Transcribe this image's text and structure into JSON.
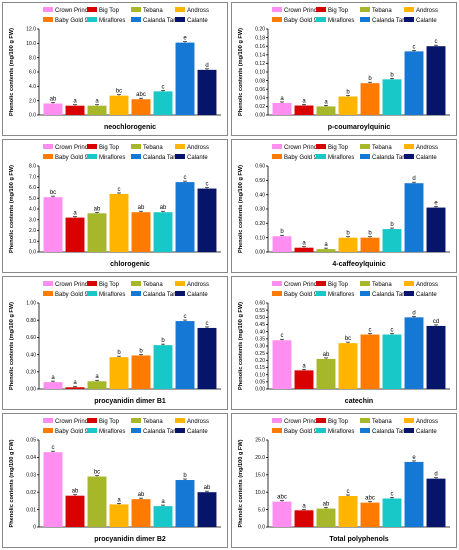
{
  "legend": [
    "Crown Princess",
    "Big Top",
    "Tebana",
    "Andross",
    "Baby Gold 9",
    "Miraflores",
    "Calanda Tardio",
    "Calante"
  ],
  "colors": [
    "#ff8ef0",
    "#d90000",
    "#a6b82a",
    "#ffb400",
    "#ff7a00",
    "#18c8c8",
    "#1478d4",
    "#06146a"
  ],
  "ylabel": "Phenolic contents (mg/100 g FW)",
  "chart_data": [
    {
      "type": "bar",
      "title": "neochlorogenic",
      "ylabel": "Phenolic contents (mg/100 g FW)",
      "ylim": [
        0,
        12
      ],
      "yticks": [
        "0.0",
        "2.0",
        "4.0",
        "6.0",
        "8.0",
        "10.0",
        "12.0"
      ],
      "series": [
        {
          "name": "Crown Princess",
          "value": 1.6
        },
        {
          "name": "Big Top",
          "value": 1.3
        },
        {
          "name": "Tebana",
          "value": 1.3
        },
        {
          "name": "Andross",
          "value": 2.7
        },
        {
          "name": "Baby Gold 9",
          "value": 2.2
        },
        {
          "name": "Miraflores",
          "value": 3.3
        },
        {
          "name": "Calanda Tardio",
          "value": 10.1
        },
        {
          "name": "Calante",
          "value": 6.3
        }
      ],
      "labels": [
        "ab",
        "a",
        "a",
        "bc",
        "abc",
        "c",
        "e",
        "d"
      ]
    },
    {
      "type": "bar",
      "title": "p-coumaroylquinic",
      "ylabel": "Phenolic contents (mg/100 g FW)",
      "ylim": [
        0,
        0.2
      ],
      "yticks": [
        "0.00",
        "0.02",
        "0.04",
        "0.06",
        "0.08",
        "0.10",
        "0.12",
        "0.14",
        "0.16",
        "0.18",
        "0.20"
      ],
      "series": [
        {
          "name": "Crown Princess",
          "value": 0.028
        },
        {
          "name": "Big Top",
          "value": 0.022
        },
        {
          "name": "Tebana",
          "value": 0.02
        },
        {
          "name": "Andross",
          "value": 0.043
        },
        {
          "name": "Baby Gold 9",
          "value": 0.074
        },
        {
          "name": "Miraflores",
          "value": 0.083
        },
        {
          "name": "Calanda Tardio",
          "value": 0.148
        },
        {
          "name": "Calante",
          "value": 0.16
        }
      ],
      "labels": [
        "a",
        "a",
        "a",
        "b",
        "b",
        "b",
        "c",
        "c"
      ]
    },
    {
      "type": "bar",
      "title": "chlorogenic",
      "ylabel": "Phenolic contents (mg/100 g FW)",
      "ylim": [
        0,
        8
      ],
      "yticks": [
        "0.0",
        "1.0",
        "2.0",
        "3.0",
        "4.0",
        "5.0",
        "6.0",
        "7.0",
        "8.0"
      ],
      "series": [
        {
          "name": "Crown Princess",
          "value": 5.1
        },
        {
          "name": "Big Top",
          "value": 3.2
        },
        {
          "name": "Tebana",
          "value": 3.6
        },
        {
          "name": "Andross",
          "value": 5.4
        },
        {
          "name": "Baby Gold 9",
          "value": 3.7
        },
        {
          "name": "Miraflores",
          "value": 3.7
        },
        {
          "name": "Calanda Tardio",
          "value": 6.5
        },
        {
          "name": "Calante",
          "value": 5.9
        }
      ],
      "labels": [
        "bc",
        "a",
        "ab",
        "c",
        "ab",
        "ab",
        "c",
        "c"
      ]
    },
    {
      "type": "bar",
      "title": "4-caffeoylquinic",
      "ylabel": "Phenolic contents (mg/100 g FW)",
      "ylim": [
        0,
        0.6
      ],
      "yticks": [
        "0.00",
        "0.10",
        "0.20",
        "0.30",
        "0.40",
        "0.50",
        "0.60"
      ],
      "series": [
        {
          "name": "Crown Princess",
          "value": 0.11
        },
        {
          "name": "Big Top",
          "value": 0.03
        },
        {
          "name": "Tebana",
          "value": 0.02
        },
        {
          "name": "Andross",
          "value": 0.1
        },
        {
          "name": "Baby Gold 9",
          "value": 0.1
        },
        {
          "name": "Miraflores",
          "value": 0.16
        },
        {
          "name": "Calanda Tardio",
          "value": 0.48
        },
        {
          "name": "Calante",
          "value": 0.31
        }
      ],
      "labels": [
        "b",
        "a",
        "a",
        "b",
        "b",
        "b",
        "d",
        "e"
      ]
    },
    {
      "type": "bar",
      "title": "procyanidin dimer B1",
      "ylabel": "Phenolic contents (mg/100 g FW)",
      "ylim": [
        0,
        1
      ],
      "yticks": [
        "0.00",
        "0.20",
        "0.40",
        "0.60",
        "0.80",
        "1.00"
      ],
      "series": [
        {
          "name": "Crown Princess",
          "value": 0.08
        },
        {
          "name": "Big Top",
          "value": 0.02
        },
        {
          "name": "Tebana",
          "value": 0.09
        },
        {
          "name": "Andross",
          "value": 0.37
        },
        {
          "name": "Baby Gold 9",
          "value": 0.39
        },
        {
          "name": "Miraflores",
          "value": 0.51
        },
        {
          "name": "Calanda Tardio",
          "value": 0.79
        },
        {
          "name": "Calante",
          "value": 0.71
        }
      ],
      "labels": [
        "a",
        "a",
        "a",
        "b",
        "b",
        "b",
        "c",
        "c"
      ]
    },
    {
      "type": "bar",
      "title": "catechin",
      "ylabel": "Phenolic contents (mg/100 g FW)",
      "ylim": [
        0,
        0.6
      ],
      "yticks": [
        "0.00",
        "0.05",
        "0.10",
        "0.15",
        "0.20",
        "0.25",
        "0.30",
        "0.35",
        "0.40",
        "0.45",
        "0.50",
        "0.55",
        "0.60"
      ],
      "series": [
        {
          "name": "Crown Princess",
          "value": 0.34
        },
        {
          "name": "Big Top",
          "value": 0.13
        },
        {
          "name": "Tebana",
          "value": 0.21
        },
        {
          "name": "Andross",
          "value": 0.32
        },
        {
          "name": "Baby Gold 9",
          "value": 0.38
        },
        {
          "name": "Miraflores",
          "value": 0.38
        },
        {
          "name": "Calanda Tardio",
          "value": 0.5
        },
        {
          "name": "Calante",
          "value": 0.44
        }
      ],
      "labels": [
        "c",
        "a",
        "ab",
        "bc",
        "c",
        "c",
        "d",
        "cd"
      ]
    },
    {
      "type": "bar",
      "title": "procyanidin dimer B2",
      "ylabel": "Phenolic contents (mg/100 g FW)",
      "ylim": [
        0,
        0.05
      ],
      "yticks": [
        "0",
        "0.01",
        "0.02",
        "0.03",
        "0.04",
        "0.05"
      ],
      "series": [
        {
          "name": "Crown Princess",
          "value": 0.043
        },
        {
          "name": "Big Top",
          "value": 0.018
        },
        {
          "name": "Tebana",
          "value": 0.029
        },
        {
          "name": "Andross",
          "value": 0.013
        },
        {
          "name": "Baby Gold 9",
          "value": 0.016
        },
        {
          "name": "Miraflores",
          "value": 0.012
        },
        {
          "name": "Calanda Tardio",
          "value": 0.027
        },
        {
          "name": "Calante",
          "value": 0.02
        }
      ],
      "labels": [
        "c",
        "ab",
        "bc",
        "a",
        "ab",
        "a",
        "b",
        "ab"
      ]
    },
    {
      "type": "bar",
      "title": "Total polyphenols",
      "ylabel": "Phenolic contents (mg/100 g FW)",
      "ylim": [
        0,
        25
      ],
      "yticks": [
        "0.0",
        "5.0",
        "10.0",
        "15.0",
        "20.0",
        "25.0"
      ],
      "series": [
        {
          "name": "Crown Princess",
          "value": 7.3
        },
        {
          "name": "Big Top",
          "value": 4.8
        },
        {
          "name": "Tebana",
          "value": 5.3
        },
        {
          "name": "Andross",
          "value": 8.9
        },
        {
          "name": "Baby Gold 9",
          "value": 7.0
        },
        {
          "name": "Miraflores",
          "value": 8.2
        },
        {
          "name": "Calanda Tardio",
          "value": 18.7
        },
        {
          "name": "Calante",
          "value": 13.9
        }
      ],
      "labels": [
        "abc",
        "a",
        "ab",
        "c",
        "abc",
        "c",
        "e",
        "d"
      ]
    }
  ]
}
